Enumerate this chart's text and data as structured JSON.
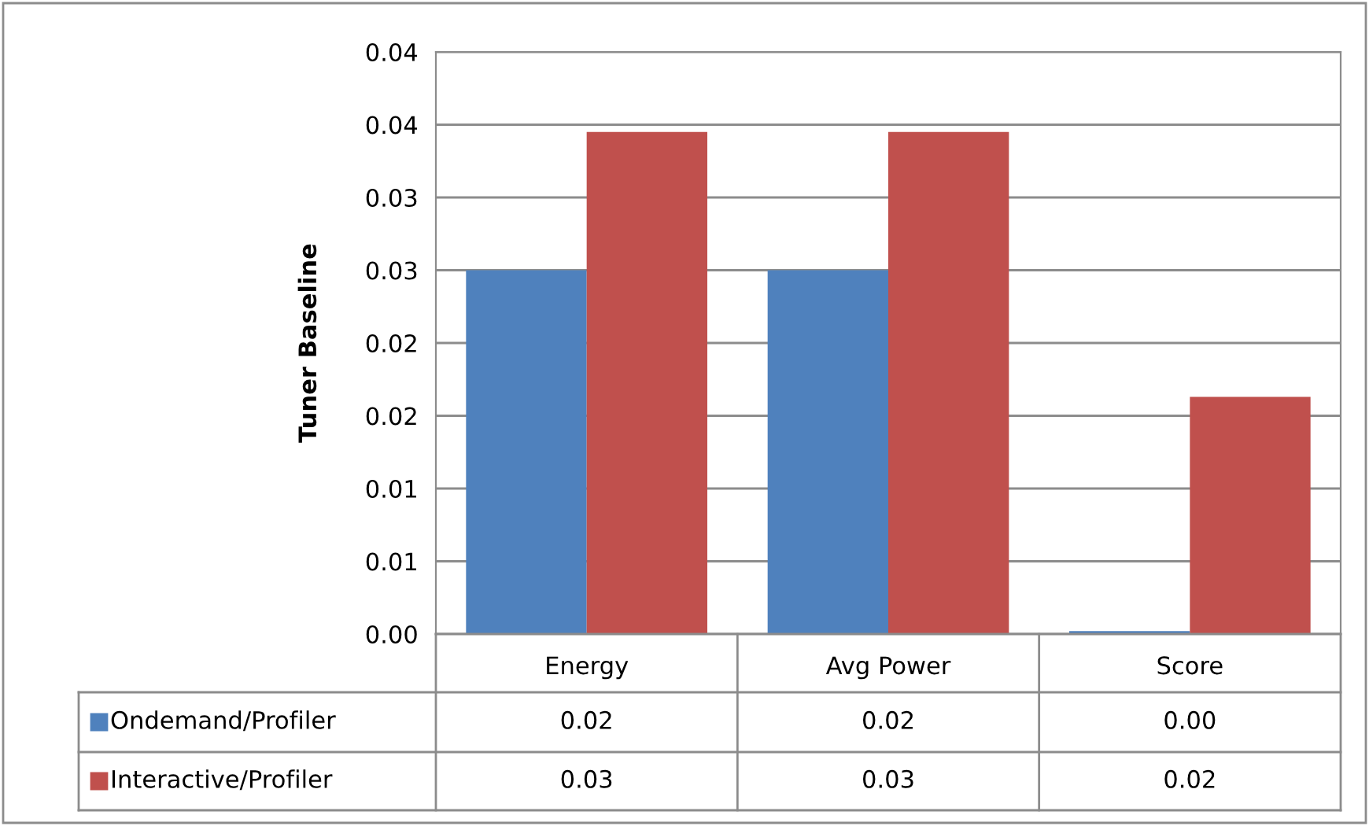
{
  "chart_data": {
    "type": "bar",
    "ylabel": "Tuner Baseline",
    "categories": [
      "Energy",
      "Avg Power",
      "Score"
    ],
    "series": [
      {
        "name": "Ondemand/Profiler",
        "color": "#4f81bd",
        "values": [
          0.025,
          0.025,
          0.0002
        ],
        "value_labels": [
          "0.02",
          "0.02",
          "0.00"
        ]
      },
      {
        "name": "Interactive/Profiler",
        "color": "#c0504d",
        "values": [
          0.0345,
          0.0345,
          0.0163
        ],
        "value_labels": [
          "0.03",
          "0.03",
          "0.02"
        ]
      }
    ],
    "ylim": [
      0,
      0.04
    ],
    "yticks": [
      {
        "value": 0,
        "label": "0.00"
      },
      {
        "value": 0.005,
        "label": "0.01"
      },
      {
        "value": 0.01,
        "label": "0.01"
      },
      {
        "value": 0.015,
        "label": "0.02"
      },
      {
        "value": 0.02,
        "label": "0.02"
      },
      {
        "value": 0.025,
        "label": "0.03"
      },
      {
        "value": 0.03,
        "label": "0.03"
      },
      {
        "value": 0.035,
        "label": "0.04"
      },
      {
        "value": 0.04,
        "label": "0.04"
      }
    ],
    "grid": "y",
    "legend": "bottom left"
  }
}
